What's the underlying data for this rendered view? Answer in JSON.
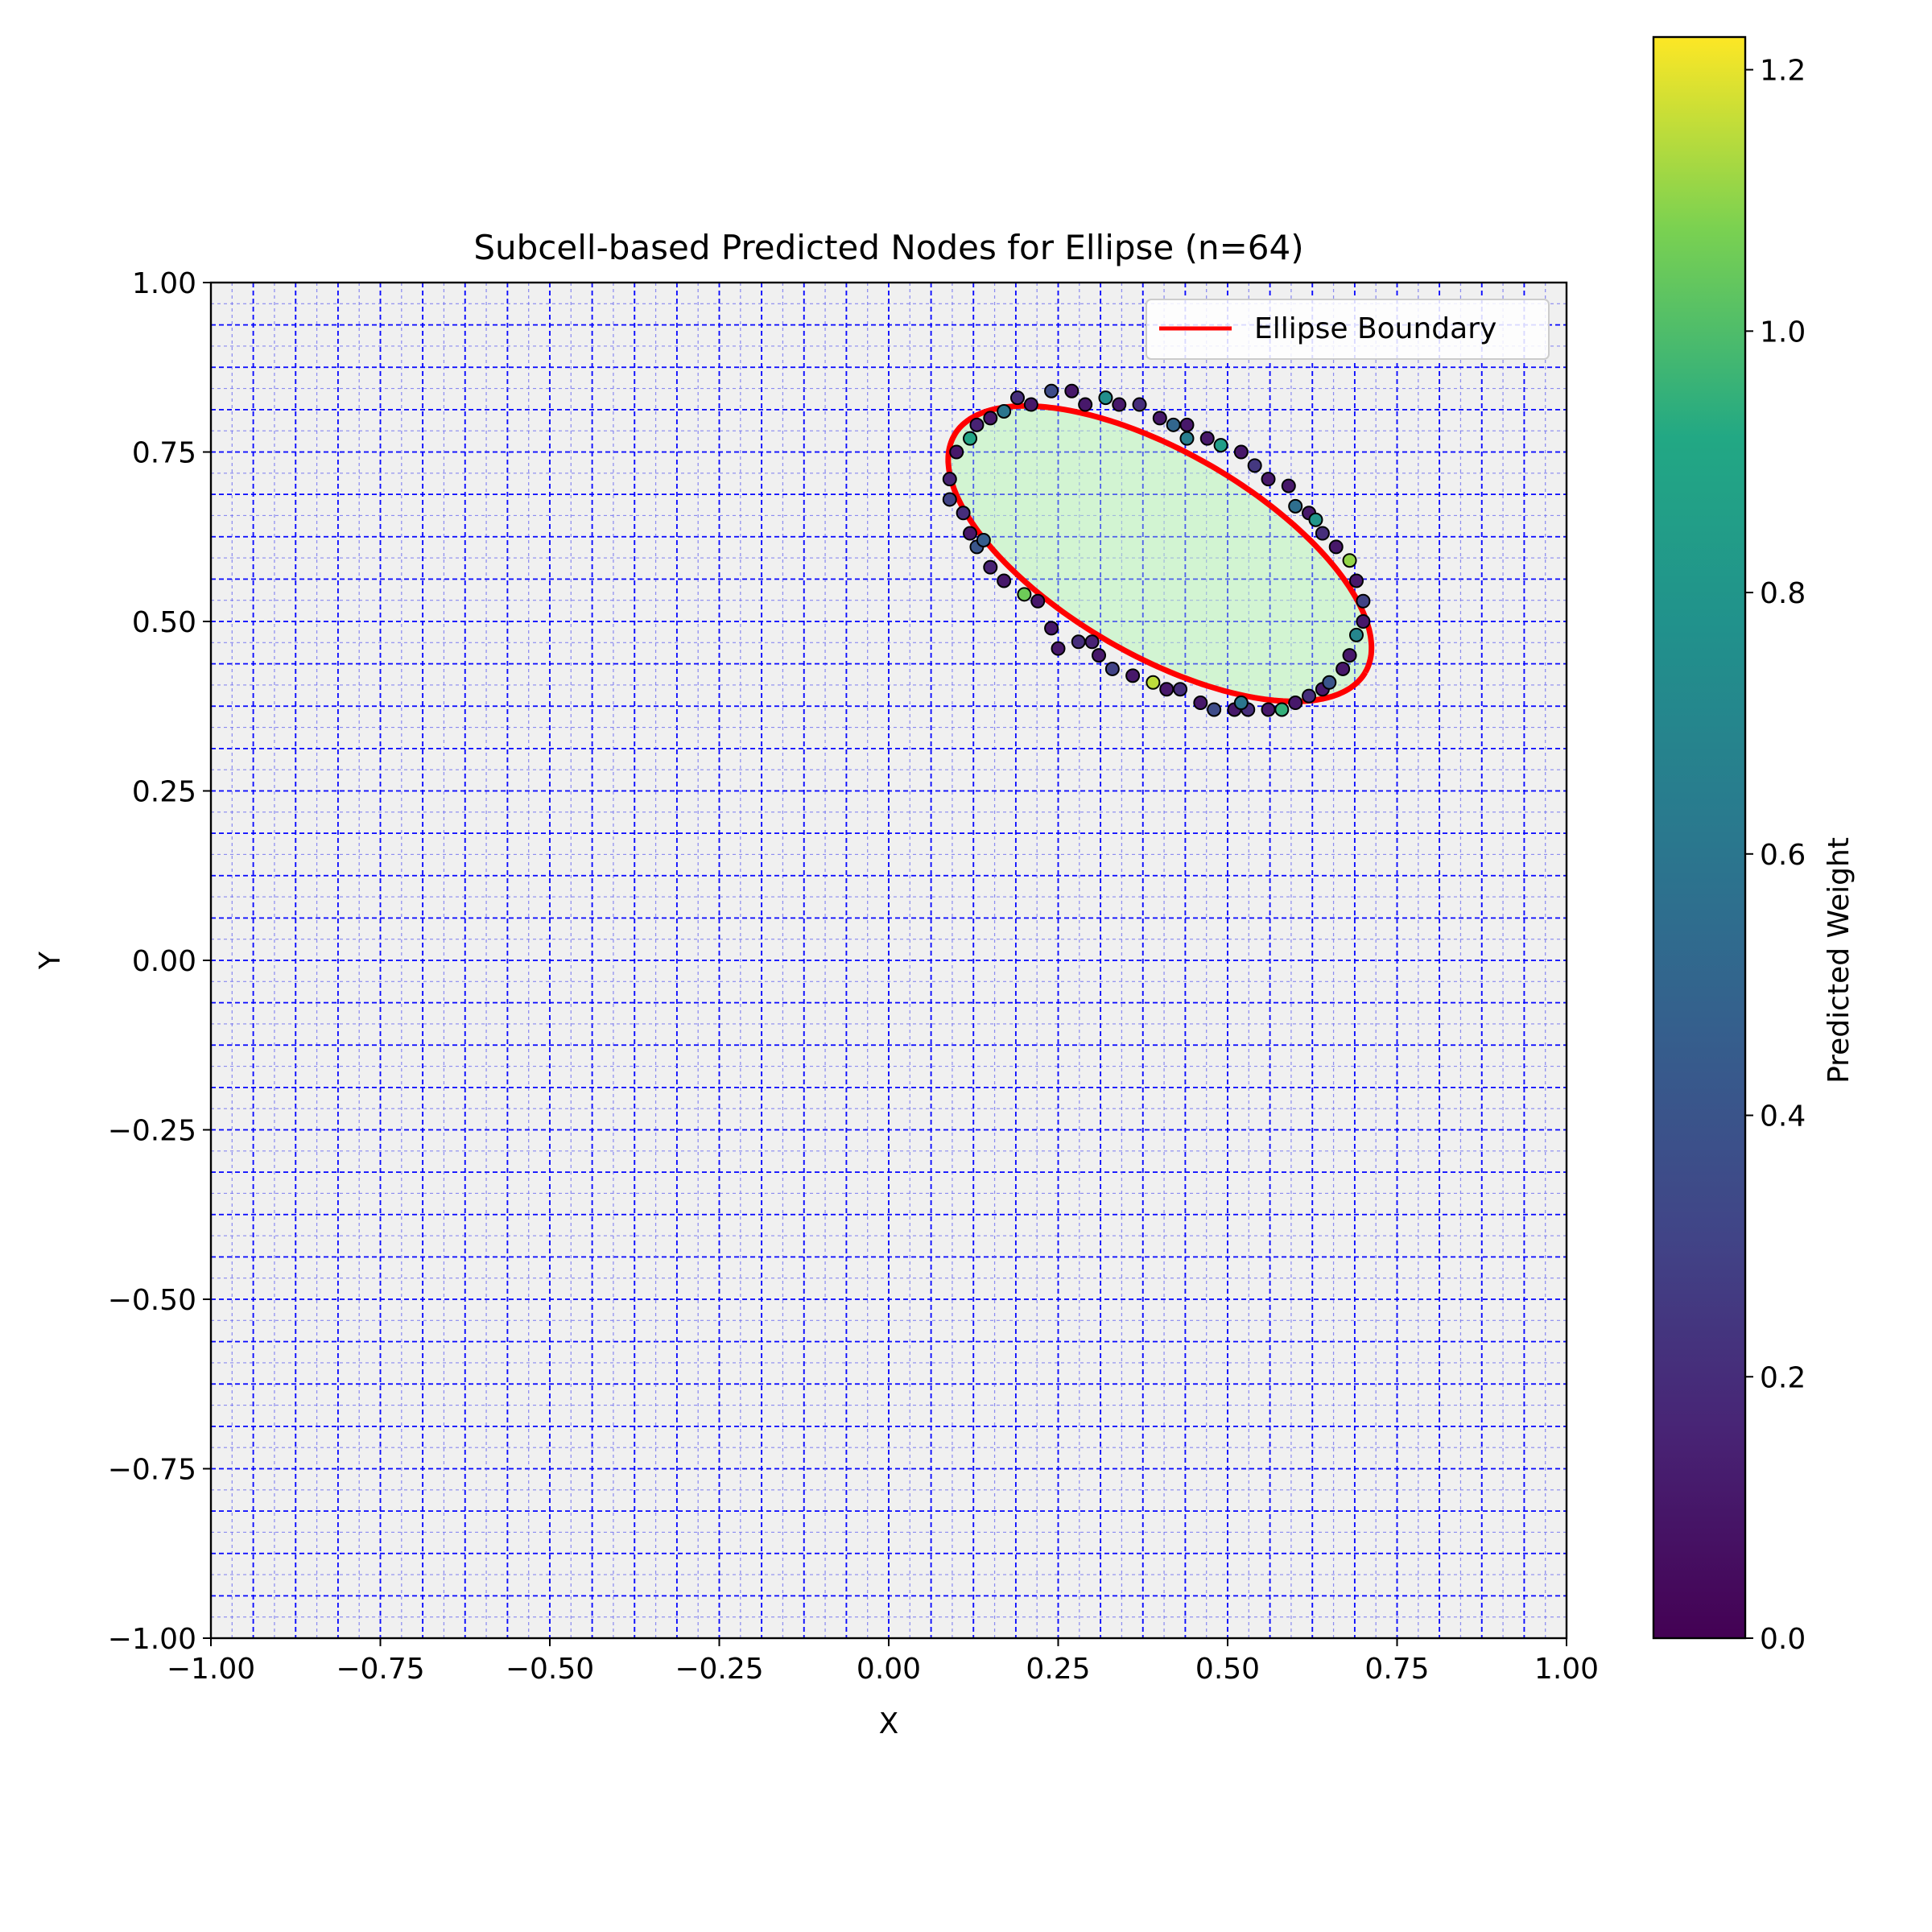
{
  "chart_data": {
    "type": "scatter",
    "title": "Subcell-based Predicted Nodes for Ellipse (n=64)",
    "xlabel": "X",
    "ylabel": "Y",
    "xlim": [
      -1.0,
      1.0
    ],
    "ylim": [
      -1.0,
      1.0
    ],
    "x_ticks": [
      "−1.00",
      "−0.75",
      "−0.50",
      "−0.25",
      "0.00",
      "0.25",
      "0.50",
      "0.75",
      "1.00"
    ],
    "y_ticks": [
      "−1.00",
      "−0.75",
      "−0.50",
      "−0.25",
      "0.00",
      "0.25",
      "0.50",
      "0.75",
      "1.00"
    ],
    "x_tick_values": [
      -1.0,
      -0.75,
      -0.5,
      -0.25,
      0.0,
      0.25,
      0.5,
      0.75,
      1.0
    ],
    "y_tick_values": [
      -1.0,
      -0.75,
      -0.5,
      -0.25,
      0.0,
      0.25,
      0.5,
      0.75,
      1.0
    ],
    "grid": {
      "cells_per_axis": 32,
      "subdivisions_per_cell": 2,
      "major_color": "#0000ff",
      "minor_color": "#6a6af0",
      "background_color": "#f0f0f0",
      "style": "dashed"
    },
    "ellipse": {
      "center": [
        0.4,
        0.6
      ],
      "semi_major": 0.35,
      "semi_minor": 0.15,
      "angle_deg": -30,
      "fill_color": "#c8f5c8",
      "boundary_color": "#ff0000"
    },
    "legend": {
      "position": "top-right",
      "entries": [
        {
          "label": "Ellipse Boundary",
          "color": "#ff0000"
        }
      ]
    },
    "series": [
      {
        "kind": "boundary-nodes",
        "points_note_omitted": "",
        "colormap": "viridis",
        "points": [
          {
            "x": 0.09,
            "y": 0.71,
            "w": 0.15
          },
          {
            "x": 0.09,
            "y": 0.68,
            "w": 0.3
          },
          {
            "x": 0.1,
            "y": 0.75,
            "w": 0.1
          },
          {
            "x": 0.11,
            "y": 0.66,
            "w": 0.2
          },
          {
            "x": 0.12,
            "y": 0.77,
            "w": 0.9
          },
          {
            "x": 0.12,
            "y": 0.63,
            "w": 0.1
          },
          {
            "x": 0.13,
            "y": 0.79,
            "w": 0.15
          },
          {
            "x": 0.13,
            "y": 0.61,
            "w": 0.4
          },
          {
            "x": 0.15,
            "y": 0.8,
            "w": 0.1
          },
          {
            "x": 0.15,
            "y": 0.58,
            "w": 0.15
          },
          {
            "x": 0.17,
            "y": 0.81,
            "w": 0.6
          },
          {
            "x": 0.17,
            "y": 0.56,
            "w": 0.1
          },
          {
            "x": 0.19,
            "y": 0.83,
            "w": 0.2
          },
          {
            "x": 0.2,
            "y": 0.54,
            "w": 1.05
          },
          {
            "x": 0.21,
            "y": 0.82,
            "w": 0.1
          },
          {
            "x": 0.22,
            "y": 0.53,
            "w": 0.1
          },
          {
            "x": 0.24,
            "y": 0.84,
            "w": 0.35
          },
          {
            "x": 0.24,
            "y": 0.49,
            "w": 0.1
          },
          {
            "x": 0.27,
            "y": 0.84,
            "w": 0.1
          },
          {
            "x": 0.28,
            "y": 0.47,
            "w": 0.2
          },
          {
            "x": 0.29,
            "y": 0.82,
            "w": 0.1
          },
          {
            "x": 0.31,
            "y": 0.45,
            "w": 0.1
          },
          {
            "x": 0.32,
            "y": 0.83,
            "w": 0.75
          },
          {
            "x": 0.33,
            "y": 0.43,
            "w": 0.3
          },
          {
            "x": 0.34,
            "y": 0.82,
            "w": 0.1
          },
          {
            "x": 0.36,
            "y": 0.42,
            "w": 0.1
          },
          {
            "x": 0.37,
            "y": 0.82,
            "w": 0.2
          },
          {
            "x": 0.39,
            "y": 0.41,
            "w": 1.15
          },
          {
            "x": 0.4,
            "y": 0.8,
            "w": 0.1
          },
          {
            "x": 0.41,
            "y": 0.4,
            "w": 0.1
          },
          {
            "x": 0.42,
            "y": 0.79,
            "w": 0.5
          },
          {
            "x": 0.43,
            "y": 0.4,
            "w": 0.2
          },
          {
            "x": 0.44,
            "y": 0.79,
            "w": 0.1
          },
          {
            "x": 0.46,
            "y": 0.38,
            "w": 0.1
          },
          {
            "x": 0.47,
            "y": 0.77,
            "w": 0.1
          },
          {
            "x": 0.48,
            "y": 0.37,
            "w": 0.35
          },
          {
            "x": 0.49,
            "y": 0.76,
            "w": 0.85
          },
          {
            "x": 0.51,
            "y": 0.37,
            "w": 0.1
          },
          {
            "x": 0.52,
            "y": 0.75,
            "w": 0.1
          },
          {
            "x": 0.53,
            "y": 0.37,
            "w": 0.2
          },
          {
            "x": 0.54,
            "y": 0.73,
            "w": 0.25
          },
          {
            "x": 0.56,
            "y": 0.37,
            "w": 0.1
          },
          {
            "x": 0.56,
            "y": 0.71,
            "w": 0.1
          },
          {
            "x": 0.58,
            "y": 0.37,
            "w": 0.95
          },
          {
            "x": 0.59,
            "y": 0.7,
            "w": 0.1
          },
          {
            "x": 0.6,
            "y": 0.38,
            "w": 0.1
          },
          {
            "x": 0.6,
            "y": 0.67,
            "w": 0.55
          },
          {
            "x": 0.62,
            "y": 0.39,
            "w": 0.2
          },
          {
            "x": 0.62,
            "y": 0.66,
            "w": 0.1
          },
          {
            "x": 0.64,
            "y": 0.4,
            "w": 0.1
          },
          {
            "x": 0.64,
            "y": 0.63,
            "w": 0.2
          },
          {
            "x": 0.65,
            "y": 0.41,
            "w": 0.4
          },
          {
            "x": 0.66,
            "y": 0.61,
            "w": 0.1
          },
          {
            "x": 0.67,
            "y": 0.43,
            "w": 0.1
          },
          {
            "x": 0.68,
            "y": 0.59,
            "w": 1.1
          },
          {
            "x": 0.68,
            "y": 0.45,
            "w": 0.1
          },
          {
            "x": 0.69,
            "y": 0.56,
            "w": 0.1
          },
          {
            "x": 0.7,
            "y": 0.53,
            "w": 0.3
          },
          {
            "x": 0.7,
            "y": 0.5,
            "w": 0.1
          },
          {
            "x": 0.69,
            "y": 0.48,
            "w": 0.7
          },
          {
            "x": 0.25,
            "y": 0.46,
            "w": 0.1
          },
          {
            "x": 0.3,
            "y": 0.47,
            "w": 0.15
          },
          {
            "x": 0.14,
            "y": 0.62,
            "w": 0.45
          },
          {
            "x": 0.44,
            "y": 0.77,
            "w": 0.65
          },
          {
            "x": 0.63,
            "y": 0.65,
            "w": 0.8
          },
          {
            "x": 0.52,
            "y": 0.38,
            "w": 0.6
          }
        ]
      }
    ],
    "colorbar": {
      "label": "Predicted Weight",
      "cmap": "viridis",
      "range": [
        0.0,
        1.225
      ],
      "tick_labels": [
        "0.0",
        "0.2",
        "0.4",
        "0.6",
        "0.8",
        "1.0",
        "1.2"
      ],
      "tick_values": [
        0.0,
        0.2,
        0.4,
        0.6,
        0.8,
        1.0,
        1.2
      ]
    }
  }
}
